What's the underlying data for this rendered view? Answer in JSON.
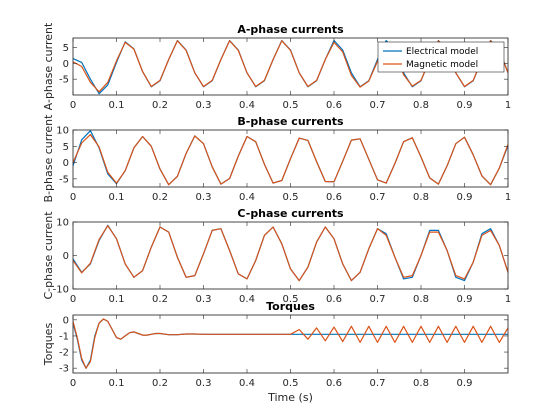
{
  "chart_data": [
    {
      "type": "line",
      "title": "A-phase currents",
      "xlabel": "",
      "ylabel": "A-phase current",
      "xlim": [
        0,
        1
      ],
      "ylim": [
        -10,
        8
      ],
      "xticks": [
        0,
        0.1,
        0.2,
        0.3,
        0.4,
        0.5,
        0.6,
        0.7,
        0.8,
        0.9,
        1
      ],
      "xtick_labels": [
        "0",
        "0.1",
        "0.2",
        "0.3",
        "0.4",
        "0.5",
        "0.6",
        "0.7",
        "0.8",
        "0.9",
        "1"
      ],
      "yticks": [
        -5,
        0,
        5
      ],
      "ytick_labels": [
        "-5",
        "0",
        "5"
      ],
      "grid": false,
      "legend": {
        "placement": "top-right",
        "entries": [
          "Electrical model",
          "Magnetic model"
        ]
      },
      "series": [
        {
          "name": "Electrical model",
          "color": "#0072BD",
          "x": [
            0,
            0.02,
            0.04,
            0.06,
            0.08,
            0.1,
            0.12,
            0.14,
            0.16,
            0.18,
            0.2,
            0.22,
            0.24,
            0.26,
            0.28,
            0.3,
            0.32,
            0.34,
            0.36,
            0.38,
            0.4,
            0.42,
            0.44,
            0.46,
            0.48,
            0.5,
            0.52,
            0.54,
            0.56,
            0.58,
            0.6,
            0.62,
            0.64,
            0.66,
            0.68,
            0.7,
            0.72,
            0.74,
            0.76,
            0.78,
            0.8,
            0.82,
            0.84,
            0.86,
            0.88,
            0.9,
            0.92,
            0.94,
            0.96,
            0.98,
            1
          ],
          "y": [
            1.5,
            0.3,
            -5.0,
            -9.6,
            -6.8,
            0.3,
            6.8,
            4.6,
            -2.6,
            -7.4,
            -5.5,
            1.2,
            7.2,
            4.2,
            -3.0,
            -7.4,
            -5.5,
            1.2,
            7.2,
            4.2,
            -3.0,
            -7.4,
            -5.5,
            1.2,
            7.2,
            4.2,
            -3.0,
            -7.4,
            -5.5,
            1.2,
            7.2,
            4.2,
            -3.0,
            -7.4,
            -5.5,
            1.2,
            7.2,
            4.2,
            -3.0,
            -7.4,
            -5.5,
            1.2,
            7.2,
            4.2,
            -3.0,
            -7.4,
            -5.5,
            1.2,
            7.2,
            4.2,
            -3.0
          ]
        },
        {
          "name": "Magnetic model",
          "color": "#D95319",
          "x": [
            0,
            0.02,
            0.04,
            0.06,
            0.08,
            0.1,
            0.12,
            0.14,
            0.16,
            0.18,
            0.2,
            0.22,
            0.24,
            0.26,
            0.28,
            0.3,
            0.32,
            0.34,
            0.36,
            0.38,
            0.4,
            0.42,
            0.44,
            0.46,
            0.48,
            0.5,
            0.52,
            0.54,
            0.56,
            0.58,
            0.6,
            0.62,
            0.64,
            0.66,
            0.68,
            0.7,
            0.72,
            0.74,
            0.76,
            0.78,
            0.8,
            0.82,
            0.84,
            0.86,
            0.88,
            0.9,
            0.92,
            0.94,
            0.96,
            0.98,
            1
          ],
          "y": [
            0.5,
            -1.0,
            -6.0,
            -9.0,
            -6.0,
            0.8,
            6.6,
            4.5,
            -2.6,
            -7.3,
            -5.4,
            1.2,
            7.1,
            4.1,
            -3.0,
            -7.3,
            -5.4,
            1.2,
            7.1,
            4.1,
            -3.0,
            -7.3,
            -5.4,
            1.2,
            7.1,
            4.1,
            -3.0,
            -7.3,
            -5.4,
            1.2,
            6.6,
            3.6,
            -3.8,
            -7.5,
            -5.6,
            0.6,
            6.4,
            3.6,
            -3.6,
            -7.2,
            -5.4,
            1.2,
            7.1,
            4.1,
            -3.0,
            -7.3,
            -5.4,
            1.2,
            7.1,
            4.1,
            -3.0
          ]
        }
      ]
    },
    {
      "type": "line",
      "title": "B-phase currents",
      "xlabel": "",
      "ylabel": "B-phase current",
      "xlim": [
        0,
        1
      ],
      "ylim": [
        -7.5,
        10
      ],
      "xticks": [
        0,
        0.1,
        0.2,
        0.3,
        0.4,
        0.5,
        0.6,
        0.7,
        0.8,
        0.9,
        1
      ],
      "xtick_labels": [
        "0",
        "0.1",
        "0.2",
        "0.3",
        "0.4",
        "0.5",
        "0.6",
        "0.7",
        "0.8",
        "0.9",
        "1"
      ],
      "yticks": [
        -5,
        0,
        5,
        10
      ],
      "ytick_labels": [
        "-5",
        "0",
        "5",
        "10"
      ],
      "grid": false,
      "series": [
        {
          "name": "Electrical model",
          "color": "#0072BD",
          "x": [
            0,
            0.02,
            0.04,
            0.06,
            0.08,
            0.1,
            0.12,
            0.14,
            0.16,
            0.18,
            0.2,
            0.22,
            0.24,
            0.26,
            0.28,
            0.3,
            0.32,
            0.34,
            0.36,
            0.38,
            0.4,
            0.42,
            0.44,
            0.46,
            0.48,
            0.5,
            0.52,
            0.54,
            0.56,
            0.58,
            0.6,
            0.62,
            0.64,
            0.66,
            0.68,
            0.7,
            0.72,
            0.74,
            0.76,
            0.78,
            0.8,
            0.82,
            0.84,
            0.86,
            0.88,
            0.9,
            0.92,
            0.94,
            0.96,
            0.98,
            1
          ],
          "y": [
            -1.0,
            7.0,
            9.8,
            4.5,
            -3.5,
            -6.5,
            -2.5,
            4.5,
            8.0,
            5.0,
            -2.0,
            -6.8,
            -4.2,
            2.8,
            8.2,
            5.8,
            -1.3,
            -6.6,
            -4.9,
            2.0,
            8.0,
            6.4,
            -0.5,
            -6.3,
            -5.5,
            1.2,
            7.5,
            6.8,
            0.3,
            -5.8,
            -5.9,
            0.4,
            6.9,
            7.3,
            1.0,
            -5.3,
            -6.3,
            -0.3,
            6.4,
            7.6,
            1.7,
            -4.7,
            -6.6,
            -1.0,
            5.8,
            7.8,
            2.4,
            -4.1,
            -6.8,
            -1.7,
            5.2
          ]
        },
        {
          "name": "Magnetic model",
          "color": "#D95319",
          "x": [
            0,
            0.02,
            0.04,
            0.06,
            0.08,
            0.1,
            0.12,
            0.14,
            0.16,
            0.18,
            0.2,
            0.22,
            0.24,
            0.26,
            0.28,
            0.3,
            0.32,
            0.34,
            0.36,
            0.38,
            0.4,
            0.42,
            0.44,
            0.46,
            0.48,
            0.5,
            0.52,
            0.54,
            0.56,
            0.58,
            0.6,
            0.62,
            0.64,
            0.66,
            0.68,
            0.7,
            0.72,
            0.74,
            0.76,
            0.78,
            0.8,
            0.82,
            0.84,
            0.86,
            0.88,
            0.9,
            0.92,
            0.94,
            0.96,
            0.98,
            1
          ],
          "y": [
            0.0,
            6.0,
            8.6,
            4.8,
            -3.0,
            -6.3,
            -2.5,
            4.5,
            8.0,
            5.0,
            -2.0,
            -6.8,
            -4.2,
            2.8,
            8.2,
            5.8,
            -1.3,
            -6.6,
            -4.9,
            2.0,
            8.0,
            6.4,
            -0.5,
            -6.3,
            -5.5,
            1.2,
            7.5,
            6.8,
            0.3,
            -5.8,
            -5.9,
            0.4,
            6.9,
            7.3,
            1.0,
            -5.3,
            -6.3,
            -0.3,
            6.4,
            7.6,
            1.7,
            -4.7,
            -6.6,
            -1.0,
            5.8,
            7.8,
            2.4,
            -4.1,
            -6.8,
            -1.7,
            5.6
          ]
        }
      ]
    },
    {
      "type": "line",
      "title": "C-phase currents",
      "xlabel": "",
      "ylabel": "C-phase current",
      "xlim": [
        0,
        1
      ],
      "ylim": [
        -10,
        10
      ],
      "xticks": [
        0,
        0.1,
        0.2,
        0.3,
        0.4,
        0.5,
        0.6,
        0.7,
        0.8,
        0.9,
        1
      ],
      "xtick_labels": [
        "0",
        "0.1",
        "0.2",
        "0.3",
        "0.4",
        "0.5",
        "0.6",
        "0.7",
        "0.8",
        "0.9",
        "1"
      ],
      "yticks": [
        -10,
        0,
        10
      ],
      "ytick_labels": [
        "-10",
        "0",
        "10"
      ],
      "grid": false,
      "series": [
        {
          "name": "Electrical model",
          "color": "#0072BD",
          "x": [
            0,
            0.02,
            0.04,
            0.06,
            0.08,
            0.1,
            0.12,
            0.14,
            0.16,
            0.18,
            0.2,
            0.22,
            0.24,
            0.26,
            0.28,
            0.3,
            0.32,
            0.34,
            0.36,
            0.38,
            0.4,
            0.42,
            0.44,
            0.46,
            0.48,
            0.5,
            0.52,
            0.54,
            0.56,
            0.58,
            0.6,
            0.62,
            0.64,
            0.66,
            0.68,
            0.7,
            0.72,
            0.74,
            0.76,
            0.78,
            0.8,
            0.82,
            0.84,
            0.86,
            0.88,
            0.9,
            0.92,
            0.94,
            0.96,
            0.98,
            1
          ],
          "y": [
            -1.0,
            -5.0,
            -2.5,
            4.5,
            9.0,
            5.0,
            -2.5,
            -6.5,
            -4.5,
            2.5,
            8.5,
            7.0,
            -0.5,
            -6.5,
            -6.0,
            0.5,
            7.5,
            8.0,
            1.5,
            -5.5,
            -7.0,
            -1.5,
            6.0,
            8.5,
            3.5,
            -4.0,
            -7.5,
            -3.5,
            4.0,
            8.5,
            5.0,
            -2.5,
            -7.5,
            -5.0,
            2.0,
            8.0,
            6.5,
            -0.5,
            -7.0,
            -6.5,
            0.0,
            7.5,
            7.5,
            1.5,
            -6.5,
            -7.5,
            -2.0,
            6.5,
            8.0,
            3.0,
            -5.0
          ]
        },
        {
          "name": "Magnetic model",
          "color": "#D95319",
          "x": [
            0,
            0.02,
            0.04,
            0.06,
            0.08,
            0.1,
            0.12,
            0.14,
            0.16,
            0.18,
            0.2,
            0.22,
            0.24,
            0.26,
            0.28,
            0.3,
            0.32,
            0.34,
            0.36,
            0.38,
            0.4,
            0.42,
            0.44,
            0.46,
            0.48,
            0.5,
            0.52,
            0.54,
            0.56,
            0.58,
            0.6,
            0.62,
            0.64,
            0.66,
            0.68,
            0.7,
            0.72,
            0.74,
            0.76,
            0.78,
            0.8,
            0.82,
            0.84,
            0.86,
            0.88,
            0.9,
            0.92,
            0.94,
            0.96,
            0.98,
            1
          ],
          "y": [
            -1.5,
            -5.2,
            -2.3,
            4.8,
            8.9,
            5.0,
            -2.5,
            -6.5,
            -4.5,
            2.5,
            8.5,
            7.0,
            -0.5,
            -6.5,
            -6.0,
            0.5,
            7.5,
            8.0,
            1.5,
            -5.5,
            -7.0,
            -1.5,
            6.0,
            8.5,
            3.5,
            -4.0,
            -7.5,
            -3.5,
            4.0,
            8.5,
            5.0,
            -2.5,
            -7.5,
            -5.0,
            2.0,
            8.0,
            6.0,
            -0.5,
            -6.5,
            -6.0,
            0.0,
            7.0,
            7.0,
            1.5,
            -6.0,
            -7.0,
            -2.0,
            6.0,
            7.5,
            3.0,
            -5.0
          ]
        }
      ]
    },
    {
      "type": "line",
      "title": "Torques",
      "xlabel": "Time (s)",
      "ylabel": "Torques",
      "xlim": [
        0,
        1
      ],
      "ylim": [
        -3.3,
        0.3
      ],
      "xticks": [
        0,
        0.1,
        0.2,
        0.3,
        0.4,
        0.5,
        0.6,
        0.7,
        0.8,
        0.9
      ],
      "xtick_labels": [
        "0",
        "0.1",
        "0.2",
        "0.3",
        "0.4",
        "0.5",
        "0.6",
        "0.7",
        "0.8",
        "0.9"
      ],
      "yticks": [
        -3,
        -2,
        -1,
        0
      ],
      "ytick_labels": [
        "-3",
        "-2",
        "-1",
        "0"
      ],
      "grid": false,
      "series": [
        {
          "name": "Electrical model",
          "color": "#0072BD",
          "x": [
            0,
            0.01,
            0.02,
            0.03,
            0.04,
            0.05,
            0.06,
            0.07,
            0.08,
            0.09,
            0.1,
            0.11,
            0.12,
            0.13,
            0.14,
            0.15,
            0.16,
            0.17,
            0.18,
            0.19,
            0.2,
            0.22,
            0.24,
            0.26,
            0.28,
            0.3,
            0.35,
            0.4,
            0.45,
            0.5,
            0.55,
            0.6,
            0.65,
            0.7,
            0.75,
            0.8,
            0.85,
            0.9,
            0.95,
            1
          ],
          "y": [
            -0.2,
            -1.2,
            -2.5,
            -3.0,
            -2.5,
            -1.0,
            -0.2,
            0.05,
            -0.1,
            -0.6,
            -1.1,
            -1.2,
            -1.0,
            -0.8,
            -0.75,
            -0.85,
            -0.95,
            -0.95,
            -0.9,
            -0.85,
            -0.85,
            -0.92,
            -0.92,
            -0.88,
            -0.88,
            -0.9,
            -0.9,
            -0.9,
            -0.9,
            -0.9,
            -0.9,
            -0.9,
            -0.9,
            -0.9,
            -0.9,
            -0.9,
            -0.9,
            -0.9,
            -0.9,
            -0.9
          ]
        },
        {
          "name": "Magnetic model",
          "color": "#D95319",
          "x": [
            0,
            0.01,
            0.02,
            0.03,
            0.04,
            0.05,
            0.06,
            0.07,
            0.08,
            0.09,
            0.1,
            0.11,
            0.12,
            0.13,
            0.14,
            0.15,
            0.16,
            0.17,
            0.18,
            0.19,
            0.2,
            0.22,
            0.24,
            0.26,
            0.28,
            0.3,
            0.35,
            0.4,
            0.45,
            0.5,
            0.52,
            0.54,
            0.56,
            0.58,
            0.6,
            0.62,
            0.64,
            0.66,
            0.68,
            0.7,
            0.72,
            0.74,
            0.76,
            0.78,
            0.8,
            0.82,
            0.84,
            0.86,
            0.88,
            0.9,
            0.92,
            0.94,
            0.96,
            0.98,
            1
          ],
          "y": [
            -0.1,
            -1.1,
            -2.4,
            -3.0,
            -2.6,
            -1.1,
            -0.2,
            0.05,
            -0.1,
            -0.6,
            -1.1,
            -1.2,
            -1.0,
            -0.8,
            -0.75,
            -0.85,
            -0.95,
            -0.95,
            -0.9,
            -0.85,
            -0.85,
            -0.92,
            -0.92,
            -0.88,
            -0.88,
            -0.9,
            -0.9,
            -0.9,
            -0.9,
            -0.9,
            -0.6,
            -1.2,
            -0.5,
            -1.3,
            -0.45,
            -1.35,
            -0.4,
            -1.4,
            -0.4,
            -1.4,
            -0.4,
            -1.4,
            -0.4,
            -1.4,
            -0.4,
            -1.4,
            -0.4,
            -1.4,
            -0.4,
            -1.4,
            -0.4,
            -1.4,
            -0.4,
            -1.4,
            -0.5
          ]
        }
      ]
    }
  ]
}
